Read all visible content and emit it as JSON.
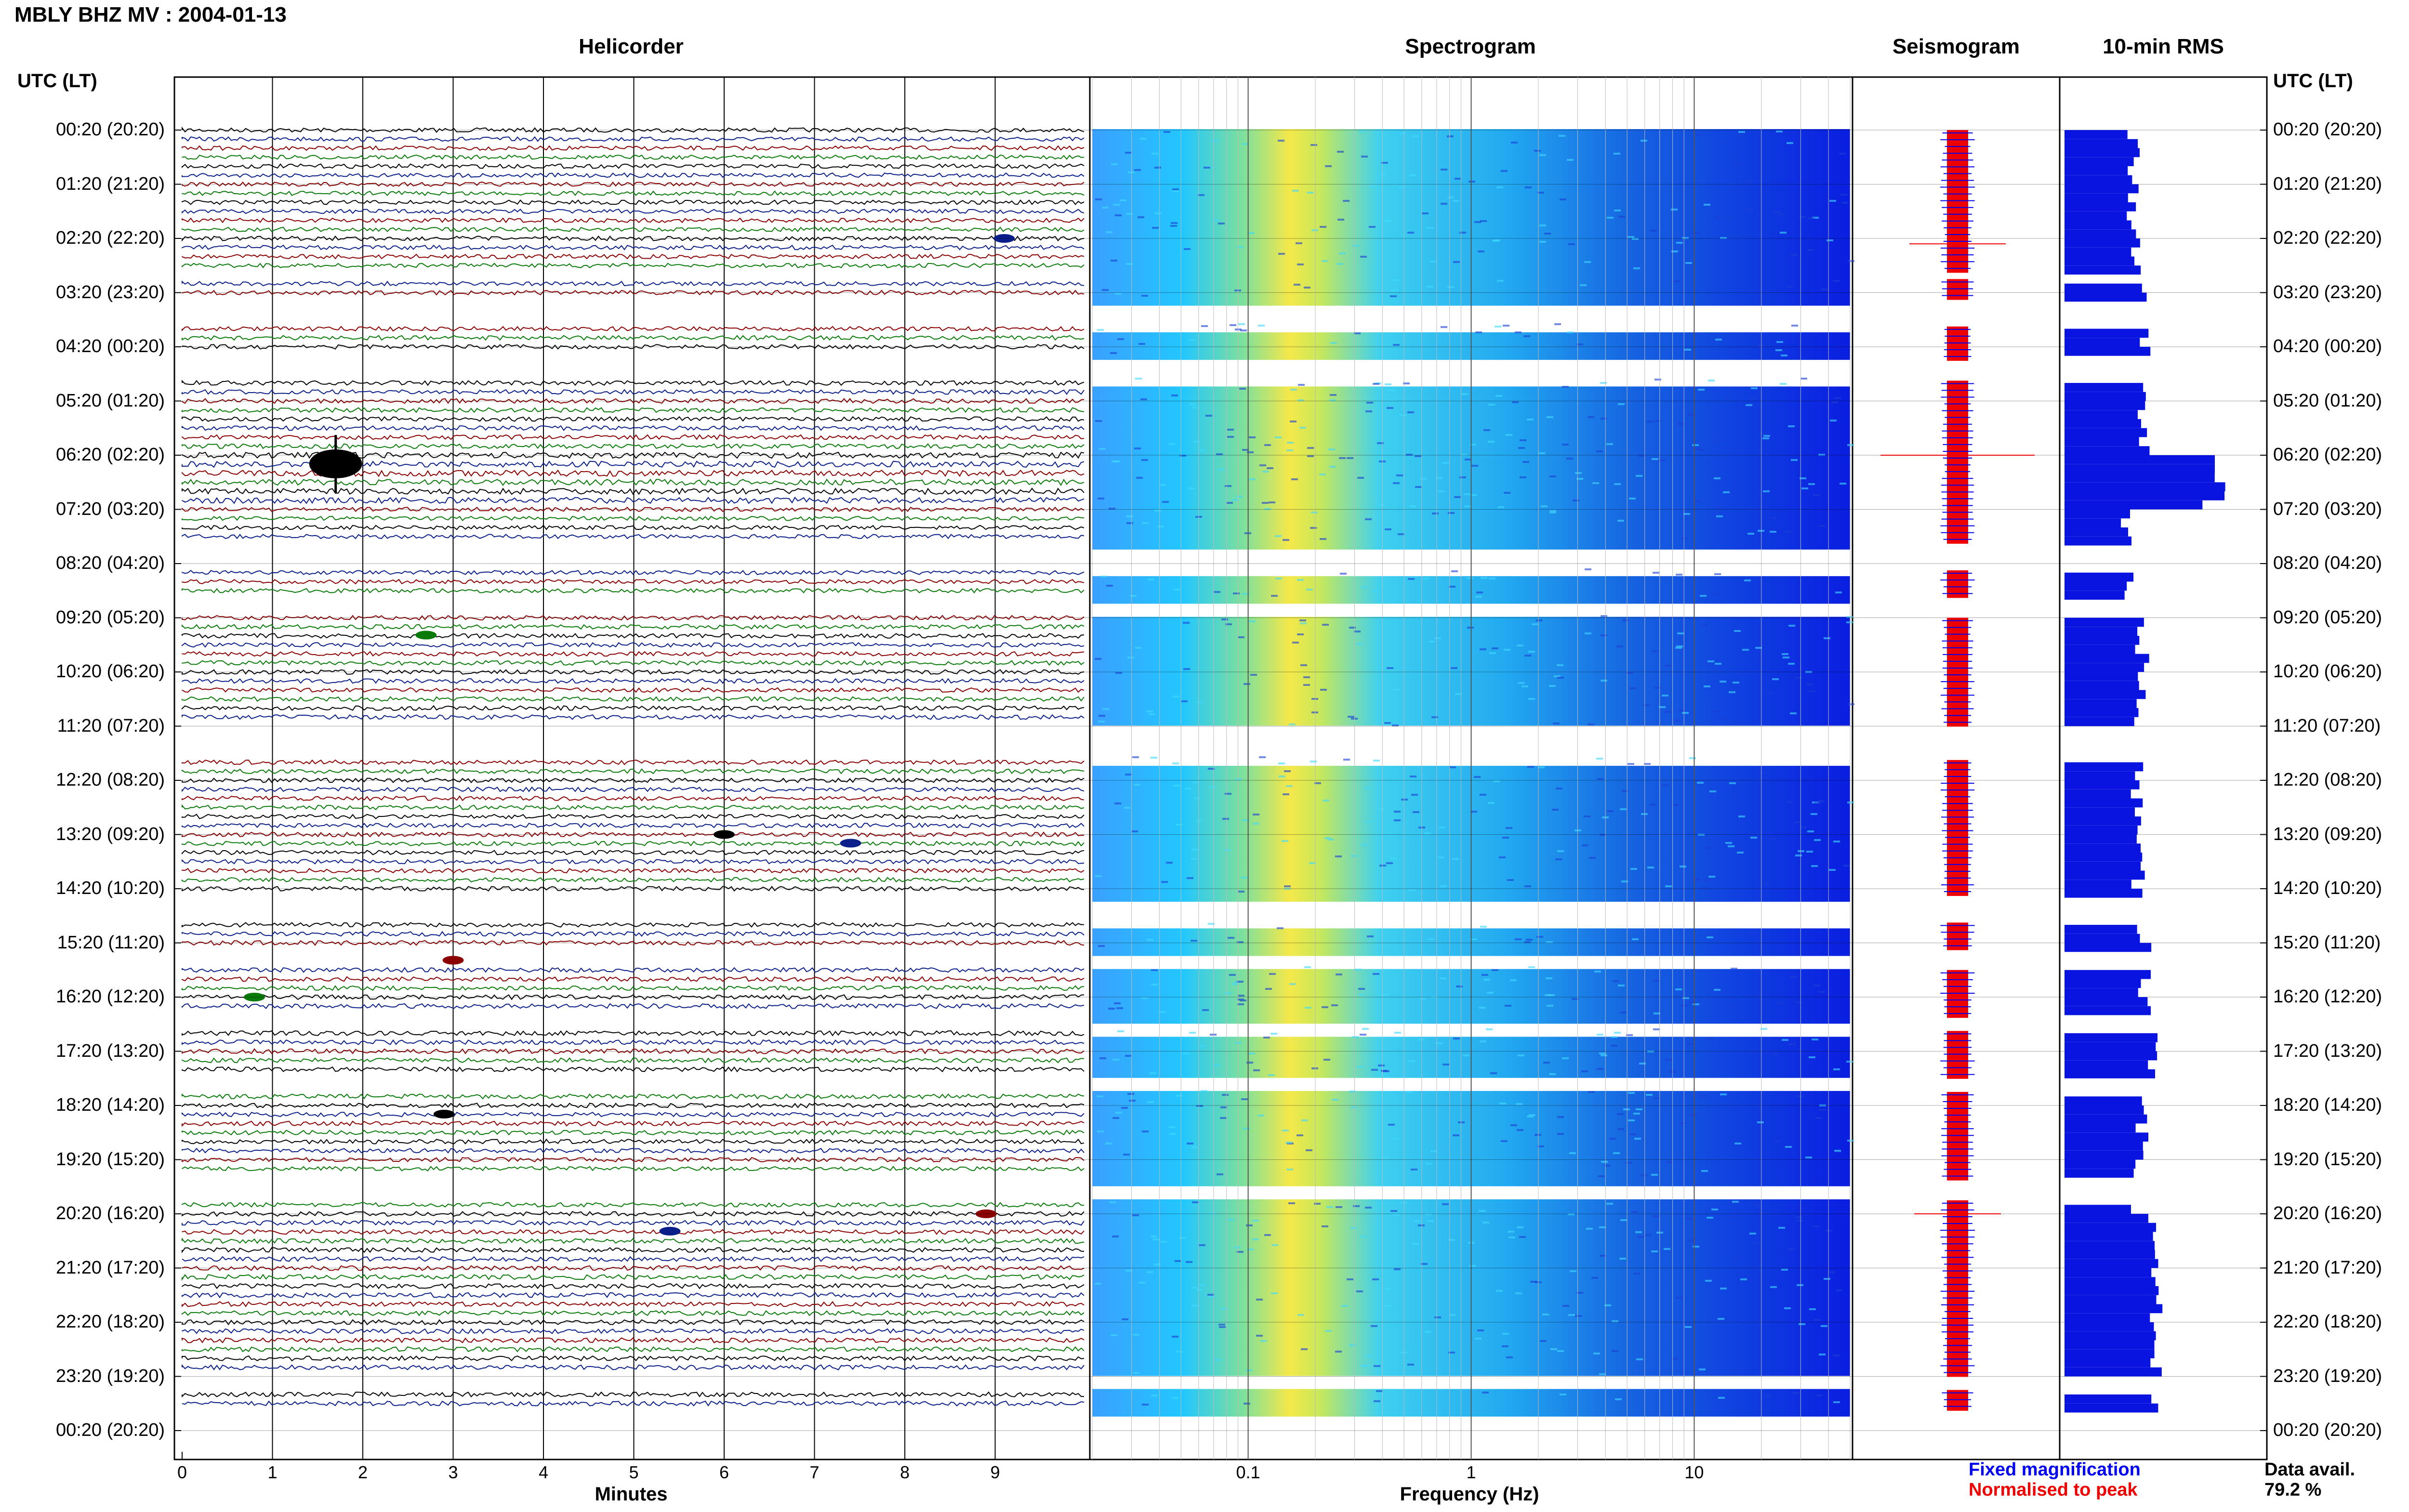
{
  "title": "MBLY BHZ MV : 2004-01-13",
  "panels": {
    "helicorder": "Helicorder",
    "spectrogram": "Spectrogram",
    "seismogram": "Seismogram",
    "rms": "10-min RMS"
  },
  "axis_header_left": "UTC (LT)",
  "axis_header_right": "UTC (LT)",
  "time_labels": [
    "00:20 (20:20)",
    "01:20 (21:20)",
    "02:20 (22:20)",
    "03:20 (23:20)",
    "04:20 (00:20)",
    "05:20 (01:20)",
    "06:20 (02:20)",
    "07:20 (03:20)",
    "08:20 (04:20)",
    "09:20 (05:20)",
    "10:20 (06:20)",
    "11:20 (07:20)",
    "12:20 (08:20)",
    "13:20 (09:20)",
    "14:20 (10:20)",
    "15:20 (11:20)",
    "16:20 (12:20)",
    "17:20 (13:20)",
    "18:20 (14:20)",
    "19:20 (15:20)",
    "20:20 (16:20)",
    "21:20 (17:20)",
    "22:20 (18:20)",
    "23:20 (19:20)",
    "00:20 (20:20)"
  ],
  "x_axes": {
    "helicorder": {
      "label": "Minutes",
      "ticks": [
        "0",
        "1",
        "2",
        "3",
        "4",
        "5",
        "6",
        "7",
        "8",
        "9"
      ]
    },
    "spectrogram": {
      "label": "Frequency (Hz)",
      "ticks": [
        "0.1",
        "1",
        "10"
      ],
      "scale": "log"
    }
  },
  "legend": {
    "fixed": "Fixed magnification",
    "normalised": "Normalised to peak",
    "fixed_color": "#0000ee",
    "normalised_color": "#ee0000"
  },
  "data_avail": {
    "label": "Data avail.",
    "value": "79.2 %"
  },
  "chart_data": {
    "type": "heatmap",
    "description_series": "helicorder trace colours cycle",
    "trace_colors": [
      "#000000",
      "#0b1f8a",
      "#8b0000",
      "#0a7a0a"
    ],
    "gaps_hours": [
      [
        2.55,
        2.75
      ],
      [
        3.05,
        3.55
      ],
      [
        4.15,
        4.55
      ],
      [
        7.55,
        8.05
      ],
      [
        8.6,
        8.95
      ],
      [
        11.0,
        11.55
      ],
      [
        14.05,
        14.6
      ],
      [
        15.05,
        15.4
      ],
      [
        16.3,
        16.55
      ],
      [
        17.45,
        17.7
      ],
      [
        19.3,
        19.75
      ],
      [
        22.95,
        23.25
      ],
      [
        23.55,
        24.0
      ]
    ],
    "events": [
      {
        "time": "02:20",
        "minute": 9.1
      },
      {
        "time": "06:20",
        "minute": 1.7
      },
      {
        "time": "09:20",
        "minute": 2.7
      },
      {
        "time": "13:20",
        "minute": 6.0
      },
      {
        "time": "13:20",
        "minute": 7.4
      },
      {
        "time": "15:20",
        "minute": 3.0
      },
      {
        "time": "16:20",
        "minute": 0.8
      },
      {
        "time": "18:20",
        "minute": 2.9
      },
      {
        "time": "20:20",
        "minute": 5.4
      },
      {
        "time": "20:20",
        "minute": 8.9
      }
    ],
    "rms_hourly": [
      0.36,
      0.35,
      0.37,
      0.4,
      0.41,
      0.42,
      0.78,
      0.32,
      0.34,
      0.4,
      0.4,
      0.4,
      0.38,
      0.38,
      0.4,
      0.42,
      0.47,
      0.44,
      0.4,
      0.35,
      0.45,
      0.47,
      0.48,
      0.45
    ],
    "spectrogram_freq_range": [
      0.02,
      50
    ]
  }
}
